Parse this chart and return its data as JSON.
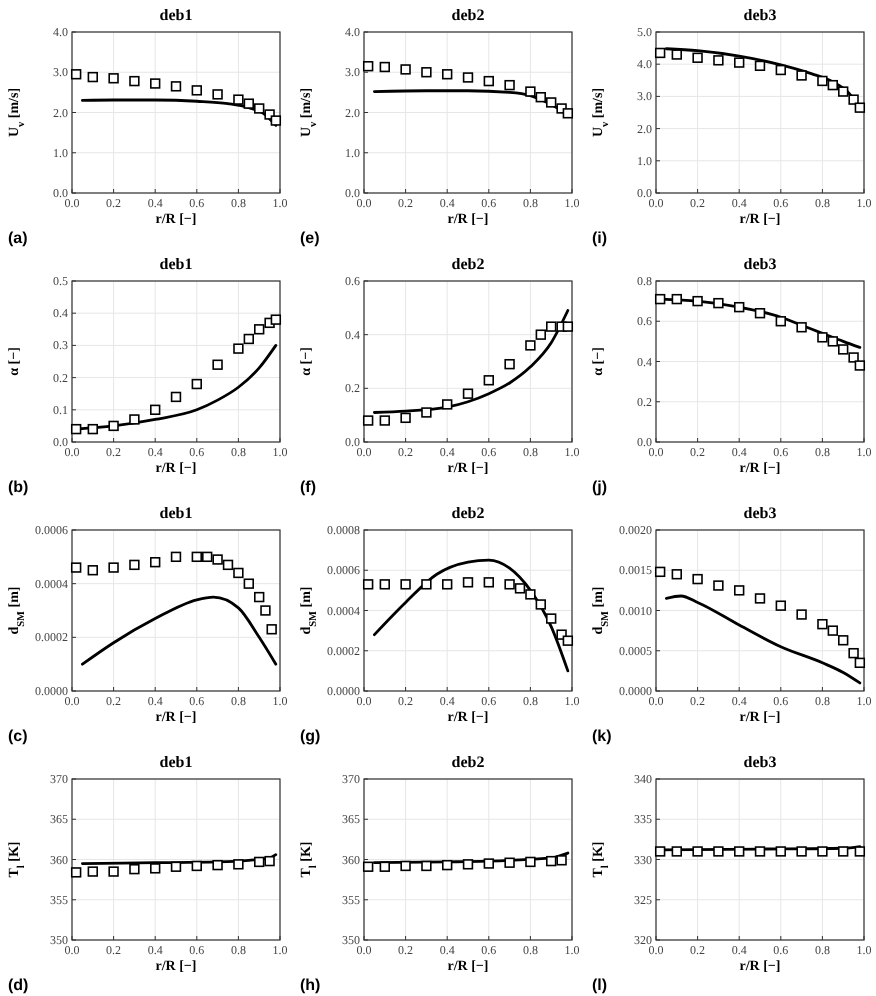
{
  "chart_data": [
    {
      "type": "scatter",
      "title": "deb1",
      "xlabel": "r/R [−]",
      "ylabel": "U$_{v}$ [m/s]",
      "annotations": [
        "(a)"
      ],
      "grid": true,
      "xlim": [
        0,
        1
      ],
      "xticks": [
        {
          "value": 0,
          "label": "0.0"
        },
        {
          "value": 0.2,
          "label": "0.2"
        },
        {
          "value": 0.4,
          "label": "0.4"
        },
        {
          "value": 0.6,
          "label": "0.6"
        },
        {
          "value": 0.8,
          "label": "0.8"
        },
        {
          "value": 1,
          "label": "1.0"
        }
      ],
      "ylim": [
        0,
        4
      ],
      "yticks": [
        {
          "value": 0,
          "label": "0.0"
        },
        {
          "value": 1,
          "label": "1.0"
        },
        {
          "value": 2,
          "label": "2.0"
        },
        {
          "value": 3,
          "label": "3.0"
        },
        {
          "value": 4,
          "label": "4.0"
        }
      ],
      "series": [
        {
          "type": "scatter",
          "marker": "square",
          "color": "#000000",
          "x": [
            0.02,
            0.1,
            0.2,
            0.3,
            0.4,
            0.5,
            0.6,
            0.7,
            0.8,
            0.85,
            0.9,
            0.95,
            0.98
          ],
          "values": [
            2.95,
            2.88,
            2.85,
            2.78,
            2.72,
            2.65,
            2.55,
            2.45,
            2.32,
            2.22,
            2.1,
            1.95,
            1.8
          ]
        },
        {
          "type": "line",
          "marker": "none",
          "color": "#000000",
          "x": [
            0.05,
            0.2,
            0.4,
            0.6,
            0.75,
            0.85,
            0.92,
            0.98
          ],
          "values": [
            2.3,
            2.31,
            2.31,
            2.28,
            2.22,
            2.12,
            1.98,
            1.68
          ]
        }
      ]
    },
    {
      "type": "scatter",
      "title": "deb2",
      "xlabel": "r/R [−]",
      "ylabel": "U$_{v}$ [m/s]",
      "annotations": [
        "(e)"
      ],
      "grid": true,
      "xlim": [
        0,
        1
      ],
      "xticks": [
        {
          "value": 0,
          "label": "0.0"
        },
        {
          "value": 0.2,
          "label": "0.2"
        },
        {
          "value": 0.4,
          "label": "0.4"
        },
        {
          "value": 0.6,
          "label": "0.6"
        },
        {
          "value": 0.8,
          "label": "0.8"
        },
        {
          "value": 1,
          "label": "1.0"
        }
      ],
      "ylim": [
        0,
        4
      ],
      "yticks": [
        {
          "value": 0,
          "label": "0.0"
        },
        {
          "value": 1,
          "label": "1.0"
        },
        {
          "value": 2,
          "label": "2.0"
        },
        {
          "value": 3,
          "label": "3.0"
        },
        {
          "value": 4,
          "label": "4.0"
        }
      ],
      "series": [
        {
          "type": "scatter",
          "marker": "square",
          "color": "#000000",
          "x": [
            0.02,
            0.1,
            0.2,
            0.3,
            0.4,
            0.5,
            0.6,
            0.7,
            0.8,
            0.85,
            0.9,
            0.95,
            0.98
          ],
          "values": [
            3.15,
            3.13,
            3.07,
            3.0,
            2.95,
            2.87,
            2.78,
            2.68,
            2.52,
            2.38,
            2.25,
            2.1,
            1.98
          ]
        },
        {
          "type": "line",
          "marker": "none",
          "color": "#000000",
          "x": [
            0.05,
            0.3,
            0.5,
            0.7,
            0.8,
            0.88,
            0.94,
            0.98
          ],
          "values": [
            2.52,
            2.54,
            2.54,
            2.5,
            2.42,
            2.25,
            2.08,
            1.92
          ]
        }
      ]
    },
    {
      "type": "scatter",
      "title": "deb3",
      "xlabel": "r/R [−]",
      "ylabel": "U$_{v}$ [m/s]",
      "annotations": [
        "(i)"
      ],
      "grid": true,
      "xlim": [
        0,
        1
      ],
      "xticks": [
        {
          "value": 0,
          "label": "0.0"
        },
        {
          "value": 0.2,
          "label": "0.2"
        },
        {
          "value": 0.4,
          "label": "0.4"
        },
        {
          "value": 0.6,
          "label": "0.6"
        },
        {
          "value": 0.8,
          "label": "0.8"
        },
        {
          "value": 1,
          "label": "1.0"
        }
      ],
      "ylim": [
        0,
        5
      ],
      "yticks": [
        {
          "value": 0,
          "label": "0.0"
        },
        {
          "value": 1,
          "label": "1.0"
        },
        {
          "value": 2,
          "label": "2.0"
        },
        {
          "value": 3,
          "label": "3.0"
        },
        {
          "value": 4,
          "label": "4.0"
        },
        {
          "value": 5,
          "label": "5.0"
        }
      ],
      "series": [
        {
          "type": "scatter",
          "marker": "square",
          "color": "#000000",
          "x": [
            0.02,
            0.1,
            0.2,
            0.3,
            0.4,
            0.5,
            0.6,
            0.7,
            0.8,
            0.85,
            0.9,
            0.95,
            0.98
          ],
          "values": [
            4.35,
            4.3,
            4.2,
            4.12,
            4.05,
            3.95,
            3.82,
            3.65,
            3.48,
            3.35,
            3.15,
            2.9,
            2.65
          ]
        },
        {
          "type": "line",
          "marker": "none",
          "color": "#000000",
          "x": [
            0.05,
            0.2,
            0.4,
            0.6,
            0.75,
            0.85,
            0.92,
            0.98
          ],
          "values": [
            4.48,
            4.42,
            4.25,
            3.98,
            3.7,
            3.45,
            3.15,
            2.65
          ]
        }
      ]
    },
    {
      "type": "scatter",
      "title": "deb1",
      "xlabel": "r/R [−]",
      "ylabel": "α [−]",
      "annotations": [
        "(b)"
      ],
      "grid": true,
      "xlim": [
        0,
        1
      ],
      "xticks": [
        {
          "value": 0,
          "label": "0.0"
        },
        {
          "value": 0.2,
          "label": "0.2"
        },
        {
          "value": 0.4,
          "label": "0.4"
        },
        {
          "value": 0.6,
          "label": "0.6"
        },
        {
          "value": 0.8,
          "label": "0.8"
        },
        {
          "value": 1,
          "label": "1.0"
        }
      ],
      "ylim": [
        0,
        0.5
      ],
      "yticks": [
        {
          "value": 0,
          "label": "0.0"
        },
        {
          "value": 0.1,
          "label": "0.1"
        },
        {
          "value": 0.2,
          "label": "0.2"
        },
        {
          "value": 0.3,
          "label": "0.3"
        },
        {
          "value": 0.4,
          "label": "0.4"
        },
        {
          "value": 0.5,
          "label": "0.5"
        }
      ],
      "series": [
        {
          "type": "scatter",
          "marker": "square",
          "color": "#000000",
          "x": [
            0.02,
            0.1,
            0.2,
            0.3,
            0.4,
            0.5,
            0.6,
            0.7,
            0.8,
            0.85,
            0.9,
            0.95,
            0.98
          ],
          "values": [
            0.04,
            0.04,
            0.05,
            0.07,
            0.1,
            0.14,
            0.18,
            0.24,
            0.29,
            0.32,
            0.35,
            0.37,
            0.38
          ]
        },
        {
          "type": "line",
          "marker": "none",
          "color": "#000000",
          "x": [
            0.02,
            0.2,
            0.4,
            0.6,
            0.7,
            0.8,
            0.9,
            0.98
          ],
          "values": [
            0.04,
            0.05,
            0.07,
            0.1,
            0.13,
            0.17,
            0.23,
            0.3
          ]
        }
      ]
    },
    {
      "type": "scatter",
      "title": "deb2",
      "xlabel": "r/R [−]",
      "ylabel": "α [−]",
      "annotations": [
        "(f)"
      ],
      "grid": true,
      "xlim": [
        0,
        1
      ],
      "xticks": [
        {
          "value": 0,
          "label": "0.0"
        },
        {
          "value": 0.2,
          "label": "0.2"
        },
        {
          "value": 0.4,
          "label": "0.4"
        },
        {
          "value": 0.6,
          "label": "0.6"
        },
        {
          "value": 0.8,
          "label": "0.8"
        },
        {
          "value": 1,
          "label": "1.0"
        }
      ],
      "ylim": [
        0,
        0.6
      ],
      "yticks": [
        {
          "value": 0,
          "label": "0.0"
        },
        {
          "value": 0.2,
          "label": "0.2"
        },
        {
          "value": 0.4,
          "label": "0.4"
        },
        {
          "value": 0.6,
          "label": "0.6"
        }
      ],
      "series": [
        {
          "type": "scatter",
          "marker": "square",
          "color": "#000000",
          "x": [
            0.02,
            0.1,
            0.2,
            0.3,
            0.4,
            0.5,
            0.6,
            0.7,
            0.8,
            0.85,
            0.9,
            0.95,
            0.98
          ],
          "values": [
            0.08,
            0.08,
            0.09,
            0.11,
            0.14,
            0.18,
            0.23,
            0.29,
            0.36,
            0.4,
            0.43,
            0.43,
            0.43
          ]
        },
        {
          "type": "line",
          "marker": "none",
          "color": "#000000",
          "x": [
            0.05,
            0.2,
            0.4,
            0.5,
            0.6,
            0.7,
            0.8,
            0.9,
            0.98
          ],
          "values": [
            0.11,
            0.115,
            0.13,
            0.15,
            0.18,
            0.22,
            0.28,
            0.37,
            0.49
          ]
        }
      ]
    },
    {
      "type": "scatter",
      "title": "deb3",
      "xlabel": "r/R [−]",
      "ylabel": "α [−]",
      "annotations": [
        "(j)"
      ],
      "grid": true,
      "xlim": [
        0,
        1
      ],
      "xticks": [
        {
          "value": 0,
          "label": "0.0"
        },
        {
          "value": 0.2,
          "label": "0.2"
        },
        {
          "value": 0.4,
          "label": "0.4"
        },
        {
          "value": 0.6,
          "label": "0.6"
        },
        {
          "value": 0.8,
          "label": "0.8"
        },
        {
          "value": 1,
          "label": "1.0"
        }
      ],
      "ylim": [
        0,
        0.8
      ],
      "yticks": [
        {
          "value": 0,
          "label": "0.0"
        },
        {
          "value": 0.2,
          "label": "0.2"
        },
        {
          "value": 0.4,
          "label": "0.4"
        },
        {
          "value": 0.6,
          "label": "0.6"
        },
        {
          "value": 0.8,
          "label": "0.8"
        }
      ],
      "series": [
        {
          "type": "scatter",
          "marker": "square",
          "color": "#000000",
          "x": [
            0.02,
            0.1,
            0.2,
            0.3,
            0.4,
            0.5,
            0.6,
            0.7,
            0.8,
            0.85,
            0.9,
            0.95,
            0.98
          ],
          "values": [
            0.71,
            0.71,
            0.7,
            0.69,
            0.67,
            0.64,
            0.6,
            0.57,
            0.52,
            0.5,
            0.46,
            0.42,
            0.38
          ]
        },
        {
          "type": "line",
          "marker": "none",
          "color": "#000000",
          "x": [
            0.02,
            0.2,
            0.4,
            0.6,
            0.7,
            0.8,
            0.9,
            0.98
          ],
          "values": [
            0.71,
            0.7,
            0.67,
            0.62,
            0.58,
            0.54,
            0.5,
            0.47
          ]
        }
      ]
    },
    {
      "type": "scatter",
      "title": "deb1",
      "xlabel": "r/R [−]",
      "ylabel": "d$_{SM}$ [m]",
      "annotations": [
        "(c)"
      ],
      "grid": true,
      "xlim": [
        0,
        1
      ],
      "xticks": [
        {
          "value": 0,
          "label": "0.0"
        },
        {
          "value": 0.2,
          "label": "0.2"
        },
        {
          "value": 0.4,
          "label": "0.4"
        },
        {
          "value": 0.6,
          "label": "0.6"
        },
        {
          "value": 0.8,
          "label": "0.8"
        },
        {
          "value": 1,
          "label": "1.0"
        }
      ],
      "ylim": [
        0,
        0.0006
      ],
      "yticks": [
        {
          "value": 0,
          "label": "0.0000"
        },
        {
          "value": 0.0002,
          "label": "0.0002"
        },
        {
          "value": 0.0004,
          "label": "0.0004"
        },
        {
          "value": 0.0006,
          "label": "0.0006"
        }
      ],
      "series": [
        {
          "type": "scatter",
          "marker": "square",
          "color": "#000000",
          "x": [
            0.02,
            0.1,
            0.2,
            0.3,
            0.4,
            0.5,
            0.6,
            0.65,
            0.7,
            0.75,
            0.8,
            0.85,
            0.9,
            0.93,
            0.96
          ],
          "values": [
            0.00046,
            0.00045,
            0.00046,
            0.00047,
            0.00048,
            0.0005,
            0.0005,
            0.0005,
            0.00049,
            0.00047,
            0.00044,
            0.0004,
            0.00035,
            0.0003,
            0.00023
          ]
        },
        {
          "type": "line",
          "marker": "none",
          "color": "#000000",
          "x": [
            0.05,
            0.2,
            0.4,
            0.6,
            0.68,
            0.8,
            0.9,
            0.98
          ],
          "values": [
            0.0001,
            0.00018,
            0.00027,
            0.00034,
            0.00035,
            0.00031,
            0.0002,
            0.0001
          ]
        }
      ]
    },
    {
      "type": "scatter",
      "title": "deb2",
      "xlabel": "r/R [−]",
      "ylabel": "d$_{SM}$ [m]",
      "annotations": [
        "(g)"
      ],
      "grid": true,
      "xlim": [
        0,
        1
      ],
      "xticks": [
        {
          "value": 0,
          "label": "0.0"
        },
        {
          "value": 0.2,
          "label": "0.2"
        },
        {
          "value": 0.4,
          "label": "0.4"
        },
        {
          "value": 0.6,
          "label": "0.6"
        },
        {
          "value": 0.8,
          "label": "0.8"
        },
        {
          "value": 1,
          "label": "1.0"
        }
      ],
      "ylim": [
        0,
        0.0008
      ],
      "yticks": [
        {
          "value": 0,
          "label": "0.0000"
        },
        {
          "value": 0.0002,
          "label": "0.0002"
        },
        {
          "value": 0.0004,
          "label": "0.0004"
        },
        {
          "value": 0.0006,
          "label": "0.0006"
        },
        {
          "value": 0.0008,
          "label": "0.0008"
        }
      ],
      "series": [
        {
          "type": "scatter",
          "marker": "square",
          "color": "#000000",
          "x": [
            0.02,
            0.1,
            0.2,
            0.3,
            0.4,
            0.5,
            0.6,
            0.7,
            0.75,
            0.8,
            0.85,
            0.9,
            0.95,
            0.98
          ],
          "values": [
            0.00053,
            0.00053,
            0.00053,
            0.00053,
            0.00053,
            0.00054,
            0.00054,
            0.00053,
            0.00051,
            0.00048,
            0.00043,
            0.00036,
            0.00028,
            0.00025
          ]
        },
        {
          "type": "line",
          "marker": "none",
          "color": "#000000",
          "x": [
            0.05,
            0.2,
            0.35,
            0.5,
            0.6,
            0.7,
            0.8,
            0.9,
            0.98
          ],
          "values": [
            0.00028,
            0.00044,
            0.00058,
            0.00064,
            0.00065,
            0.00061,
            0.0005,
            0.00032,
            0.0001
          ]
        }
      ]
    },
    {
      "type": "scatter",
      "title": "deb3",
      "xlabel": "r/R [−]",
      "ylabel": "d$_{SM}$ [m]",
      "annotations": [
        "(k)"
      ],
      "grid": true,
      "xlim": [
        0,
        1
      ],
      "xticks": [
        {
          "value": 0,
          "label": "0.0"
        },
        {
          "value": 0.2,
          "label": "0.2"
        },
        {
          "value": 0.4,
          "label": "0.4"
        },
        {
          "value": 0.6,
          "label": "0.6"
        },
        {
          "value": 0.8,
          "label": "0.8"
        },
        {
          "value": 1,
          "label": "1.0"
        }
      ],
      "ylim": [
        0,
        0.002
      ],
      "yticks": [
        {
          "value": 0,
          "label": "0.0000"
        },
        {
          "value": 0.0005,
          "label": "0.0005"
        },
        {
          "value": 0.001,
          "label": "0.0010"
        },
        {
          "value": 0.0015,
          "label": "0.0015"
        },
        {
          "value": 0.002,
          "label": "0.0020"
        }
      ],
      "series": [
        {
          "type": "scatter",
          "marker": "square",
          "color": "#000000",
          "x": [
            0.02,
            0.1,
            0.2,
            0.3,
            0.4,
            0.5,
            0.6,
            0.7,
            0.8,
            0.85,
            0.9,
            0.95,
            0.98
          ],
          "values": [
            0.00148,
            0.00145,
            0.00139,
            0.00131,
            0.00125,
            0.00115,
            0.00106,
            0.00095,
            0.00083,
            0.00075,
            0.00063,
            0.00047,
            0.00035
          ]
        },
        {
          "type": "line",
          "marker": "none",
          "color": "#000000",
          "x": [
            0.05,
            0.12,
            0.2,
            0.4,
            0.6,
            0.8,
            0.9,
            0.98
          ],
          "values": [
            0.00115,
            0.00118,
            0.0011,
            0.00082,
            0.00055,
            0.00035,
            0.00023,
            0.0001
          ]
        }
      ]
    },
    {
      "type": "scatter",
      "title": "deb1",
      "xlabel": "r/R [−]",
      "ylabel": "T$_{l}$ [K]",
      "annotations": [
        "(d)"
      ],
      "grid": true,
      "xlim": [
        0,
        1
      ],
      "xticks": [
        {
          "value": 0,
          "label": "0.0"
        },
        {
          "value": 0.2,
          "label": "0.2"
        },
        {
          "value": 0.4,
          "label": "0.4"
        },
        {
          "value": 0.6,
          "label": "0.6"
        },
        {
          "value": 0.8,
          "label": "0.8"
        },
        {
          "value": 1,
          "label": "1.0"
        }
      ],
      "ylim": [
        350,
        370
      ],
      "yticks": [
        350,
        355,
        360,
        365,
        370
      ],
      "series": [
        {
          "type": "scatter",
          "marker": "square",
          "color": "#000000",
          "x": [
            0.02,
            0.1,
            0.2,
            0.3,
            0.4,
            0.5,
            0.6,
            0.7,
            0.8,
            0.9,
            0.95
          ],
          "values": [
            358.4,
            358.5,
            358.5,
            358.8,
            358.9,
            359.1,
            359.2,
            359.3,
            359.4,
            359.7,
            359.8
          ]
        },
        {
          "type": "line",
          "marker": "none",
          "color": "#000000",
          "x": [
            0.05,
            0.4,
            0.7,
            0.85,
            0.95,
            0.98
          ],
          "values": [
            359.5,
            359.6,
            359.7,
            359.9,
            360.2,
            360.6
          ]
        }
      ]
    },
    {
      "type": "scatter",
      "title": "deb2",
      "xlabel": "r/R [−]",
      "ylabel": "T$_{l}$ [K]",
      "annotations": [
        "(h)"
      ],
      "grid": true,
      "xlim": [
        0,
        1
      ],
      "xticks": [
        {
          "value": 0,
          "label": "0.0"
        },
        {
          "value": 0.2,
          "label": "0.2"
        },
        {
          "value": 0.4,
          "label": "0.4"
        },
        {
          "value": 0.6,
          "label": "0.6"
        },
        {
          "value": 0.8,
          "label": "0.8"
        },
        {
          "value": 1,
          "label": "1.0"
        }
      ],
      "ylim": [
        350,
        370
      ],
      "yticks": [
        350,
        355,
        360,
        365,
        370
      ],
      "series": [
        {
          "type": "scatter",
          "marker": "square",
          "color": "#000000",
          "x": [
            0.02,
            0.1,
            0.2,
            0.3,
            0.4,
            0.5,
            0.6,
            0.7,
            0.8,
            0.9,
            0.95
          ],
          "values": [
            359.1,
            359.1,
            359.2,
            359.2,
            359.3,
            359.4,
            359.5,
            359.6,
            359.7,
            359.8,
            359.9
          ]
        },
        {
          "type": "line",
          "marker": "none",
          "color": "#000000",
          "x": [
            0.05,
            0.4,
            0.7,
            0.9,
            0.98
          ],
          "values": [
            359.6,
            359.7,
            359.9,
            360.2,
            360.8
          ]
        }
      ]
    },
    {
      "type": "scatter",
      "title": "deb3",
      "xlabel": "r/R [−]",
      "ylabel": "T$_{l}$ [K]",
      "annotations": [
        "(l)"
      ],
      "grid": true,
      "xlim": [
        0,
        1
      ],
      "xticks": [
        {
          "value": 0,
          "label": "0.0"
        },
        {
          "value": 0.2,
          "label": "0.2"
        },
        {
          "value": 0.4,
          "label": "0.4"
        },
        {
          "value": 0.6,
          "label": "0.6"
        },
        {
          "value": 0.8,
          "label": "0.8"
        },
        {
          "value": 1,
          "label": "1.0"
        }
      ],
      "ylim": [
        320,
        340
      ],
      "yticks": [
        320,
        325,
        330,
        335,
        340
      ],
      "series": [
        {
          "type": "scatter",
          "marker": "square",
          "color": "#000000",
          "x": [
            0.02,
            0.1,
            0.2,
            0.3,
            0.4,
            0.5,
            0.6,
            0.7,
            0.8,
            0.9,
            0.98
          ],
          "values": [
            331,
            331,
            331,
            331,
            331,
            331,
            331,
            331,
            331,
            331,
            331
          ]
        },
        {
          "type": "line",
          "marker": "none",
          "color": "#000000",
          "x": [
            0.02,
            0.5,
            0.9,
            0.98
          ],
          "values": [
            331.2,
            331.3,
            331.4,
            331.6
          ]
        }
      ]
    }
  ]
}
